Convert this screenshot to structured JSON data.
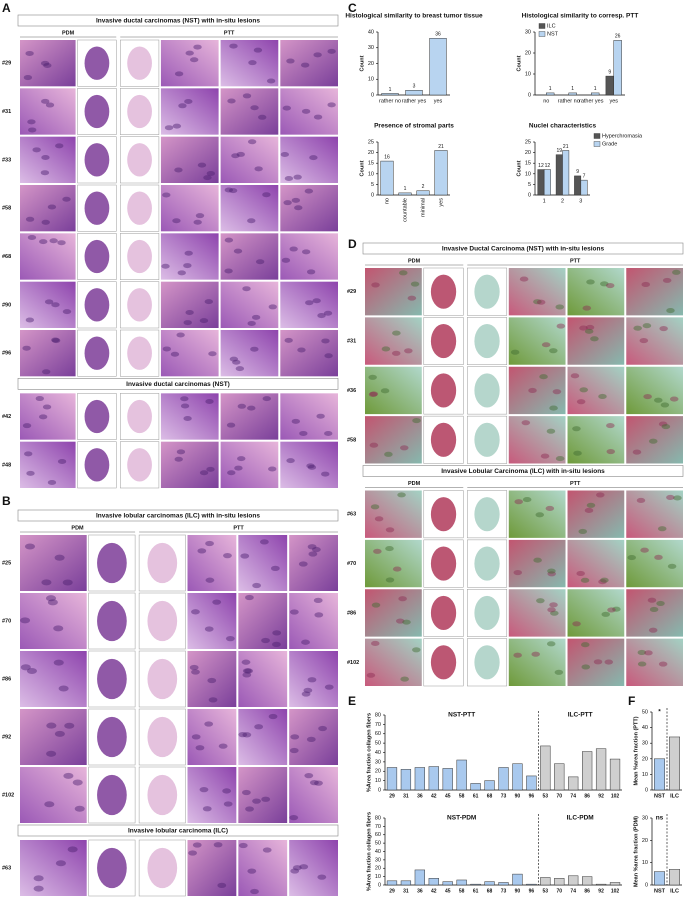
{
  "panel_letters": [
    "A",
    "B",
    "C",
    "D",
    "E",
    "F"
  ],
  "panels": [
    {
      "sections": [
        {
          "title": "Invasive ductal carcinomas (NST) with in-situ lesions",
          "columns": [
            "PDM",
            "PTT"
          ],
          "rows": [
            "#29",
            "#31",
            "#33",
            "#58",
            "#68",
            "#90",
            "#96"
          ]
        },
        {
          "title": "Invasive ductal carcinomas (NST)",
          "rows": [
            "#42",
            "#48"
          ]
        }
      ]
    },
    {
      "sections": [
        {
          "title": "Invasive lobular carcinomas (ILC) with in-situ lesions",
          "columns": [
            "PDM",
            "PTT"
          ],
          "rows": [
            "#25",
            "#70",
            "#86",
            "#92",
            "#102"
          ]
        },
        {
          "title": "Invasive lobular carcinoma (ILC)",
          "rows": [
            "#63"
          ]
        }
      ]
    },
    {
      "sections": [
        {
          "title": "Invasive Ductal Carcinoma (NST) with in-situ lesions",
          "columns": [
            "PDM",
            "PTT"
          ],
          "rows": [
            "#29",
            "#31",
            "#36",
            "#58"
          ]
        },
        {
          "title": "Invasive Lobular Carcinoma (ILC) with in-situ lesions",
          "columns": [
            "PDM",
            "PTT"
          ],
          "rows": [
            "#63",
            "#70",
            "#86",
            "#102"
          ]
        }
      ]
    }
  ],
  "chart_data": [
    {
      "type": "bar",
      "title": "Histological similarity to breast tumor tissue",
      "y_label": "Count",
      "categories": [
        "rather no",
        "rather yes",
        "yes"
      ],
      "values": [
        1,
        3,
        36
      ],
      "color": "#b8d4f0",
      "data_labels": true,
      "ylim": [
        0,
        40
      ],
      "yticks": [
        0,
        10,
        20,
        30,
        40
      ]
    },
    {
      "type": "bar",
      "title": "Histological similarity to corresp. PTT",
      "y_label": "Count",
      "categories": [
        "no",
        "rather no",
        "rather yes",
        "yes"
      ],
      "series": [
        {
          "name": "ILC",
          "color": "#555555",
          "values": [
            0,
            0,
            0,
            9
          ]
        },
        {
          "name": "NST",
          "color": "#b8d4f0",
          "values": [
            1,
            1,
            1,
            26
          ]
        }
      ],
      "data_labels": true,
      "legend": "top-left",
      "ylim": [
        0,
        30
      ],
      "yticks": [
        0,
        10,
        20,
        30
      ]
    },
    {
      "type": "bar",
      "title": "Presence of stromal parts",
      "y_label": "Count",
      "categories": [
        "no",
        "countable",
        "minimal",
        "yes"
      ],
      "values": [
        16,
        1,
        2,
        21
      ],
      "color": "#b8d4f0",
      "data_labels": true,
      "rotate_labels": true,
      "ylim": [
        0,
        25
      ],
      "yticks": [
        0,
        5,
        10,
        15,
        20,
        25
      ]
    },
    {
      "type": "bar",
      "title": "Nuclei characteristics",
      "y_label": "Count",
      "categories": [
        "1",
        "2",
        "3"
      ],
      "series": [
        {
          "name": "Hyperchromasia",
          "color": "#555555",
          "values": [
            12,
            19,
            9
          ]
        },
        {
          "name": "Grade",
          "color": "#b8d4f0",
          "values": [
            12,
            21,
            7
          ]
        }
      ],
      "data_labels": true,
      "legend": "top-right",
      "ylim": [
        0,
        25
      ],
      "yticks": [
        0,
        5,
        10,
        15,
        20,
        25
      ]
    },
    {
      "type": "bar",
      "y_label": "%Area fraction collagen fibers",
      "annotations": [
        "NST-PTT",
        "ILC-PTT"
      ],
      "categories": [
        "29",
        "31",
        "36",
        "42",
        "45",
        "58",
        "61",
        "68",
        "73",
        "90",
        "96",
        "53",
        "70",
        "74",
        "86",
        "92",
        "102"
      ],
      "values": [
        24,
        22,
        24,
        25,
        23,
        32,
        7,
        10,
        24,
        28,
        15,
        47,
        28,
        14,
        41,
        44,
        33
      ],
      "colors": [
        "#a9c9ee",
        "#a9c9ee",
        "#a9c9ee",
        "#a9c9ee",
        "#a9c9ee",
        "#a9c9ee",
        "#a9c9ee",
        "#a9c9ee",
        "#a9c9ee",
        "#a9c9ee",
        "#a9c9ee",
        "#cfcfcf",
        "#cfcfcf",
        "#cfcfcf",
        "#cfcfcf",
        "#cfcfcf",
        "#cfcfcf"
      ],
      "ylim": [
        0,
        80
      ],
      "yticks": [
        0,
        10,
        20,
        30,
        40,
        50,
        60,
        70,
        80
      ]
    },
    {
      "type": "bar",
      "y_label": "%Area fraction collagen fibers",
      "annotations": [
        "NST-PDM",
        "ILC-PDM"
      ],
      "categories": [
        "29",
        "31",
        "36",
        "42",
        "45",
        "58",
        "61",
        "68",
        "73",
        "90",
        "96",
        "53",
        "70",
        "74",
        "86",
        "92",
        "102"
      ],
      "values": [
        5,
        5,
        18,
        8,
        4,
        6,
        1,
        4,
        3,
        13,
        1,
        9,
        8,
        11,
        10,
        1,
        3
      ],
      "colors": [
        "#a9c9ee",
        "#a9c9ee",
        "#a9c9ee",
        "#a9c9ee",
        "#a9c9ee",
        "#a9c9ee",
        "#a9c9ee",
        "#a9c9ee",
        "#a9c9ee",
        "#a9c9ee",
        "#a9c9ee",
        "#cfcfcf",
        "#cfcfcf",
        "#cfcfcf",
        "#cfcfcf",
        "#cfcfcf",
        "#cfcfcf"
      ],
      "ylim": [
        0,
        80
      ],
      "yticks": [
        0,
        10,
        20,
        30,
        40,
        50,
        60,
        70,
        80
      ]
    },
    {
      "type": "bar",
      "y_label": "Mean %area fraction (PTT)",
      "annotations": [
        "*"
      ],
      "categories": [
        "NST",
        "ILC"
      ],
      "values": [
        20,
        34
      ],
      "colors": [
        "#a9c9ee",
        "#cfcfcf"
      ],
      "ylim": [
        0,
        50
      ],
      "yticks": [
        0,
        10,
        20,
        30,
        40,
        50
      ]
    },
    {
      "type": "bar",
      "y_label": "Mean %area fraction (PDM)",
      "annotations": [
        "ns"
      ],
      "categories": [
        "NST",
        "ILC"
      ],
      "values": [
        6,
        7
      ],
      "colors": [
        "#a9c9ee",
        "#cfcfcf"
      ],
      "ylim": [
        0,
        30
      ],
      "yticks": [
        0,
        10,
        20,
        30
      ]
    }
  ]
}
